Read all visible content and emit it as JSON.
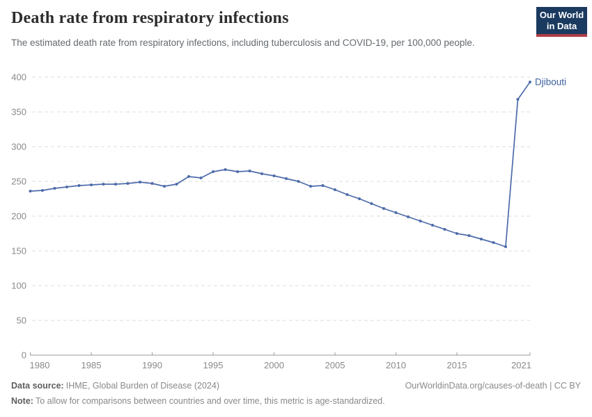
{
  "header": {
    "title": "Death rate from respiratory infections",
    "subtitle": "The estimated death rate from respiratory infections, including tuberculosis and COVID-19, per 100,000 people.",
    "logo": {
      "line1": "Our World",
      "line2": "in Data"
    }
  },
  "chart_data": {
    "type": "line",
    "title": "Death rate from respiratory infections",
    "xlabel": "",
    "ylabel": "",
    "xlim": [
      1980,
      2021
    ],
    "ylim": [
      0,
      400
    ],
    "grid": "horizontal-dashed",
    "legend": "end-of-line-label",
    "x_ticks": [
      1980,
      1985,
      1990,
      1995,
      2000,
      2005,
      2010,
      2015,
      2021
    ],
    "y_ticks": [
      0,
      50,
      100,
      150,
      200,
      250,
      300,
      350,
      400
    ],
    "x": [
      1980,
      1981,
      1982,
      1983,
      1984,
      1985,
      1986,
      1987,
      1988,
      1989,
      1990,
      1991,
      1992,
      1993,
      1994,
      1995,
      1996,
      1997,
      1998,
      1999,
      2000,
      2001,
      2002,
      2003,
      2004,
      2005,
      2006,
      2007,
      2008,
      2009,
      2010,
      2011,
      2012,
      2013,
      2014,
      2015,
      2016,
      2017,
      2018,
      2019,
      2020,
      2021
    ],
    "series": [
      {
        "name": "Djibouti",
        "values": [
          236,
          237,
          240,
          242,
          244,
          245,
          246,
          246,
          247,
          249,
          247,
          243,
          246,
          257,
          255,
          264,
          267,
          264,
          265,
          261,
          258,
          254,
          250,
          243,
          244,
          238,
          231,
          225,
          218,
          211,
          205,
          199,
          193,
          187,
          181,
          175,
          172,
          167,
          162,
          156,
          368,
          393
        ]
      }
    ]
  },
  "footer": {
    "source_label": "Data source:",
    "source_text": "IHME, Global Burden of Disease (2024)",
    "credit": "OurWorldinData.org/causes-of-death | CC BY",
    "note_label": "Note:",
    "note_text": "To allow for comparisons between countries and over time, this metric is age-standardized."
  },
  "colors": {
    "line": "#4c6ba9",
    "entity_label": "#3d5f9e",
    "grid": "#dcdcdc",
    "axis": "#9a9a9a",
    "tick_text": "#8a8a8a",
    "navy": "#1a3a60",
    "red": "#b13c47"
  }
}
